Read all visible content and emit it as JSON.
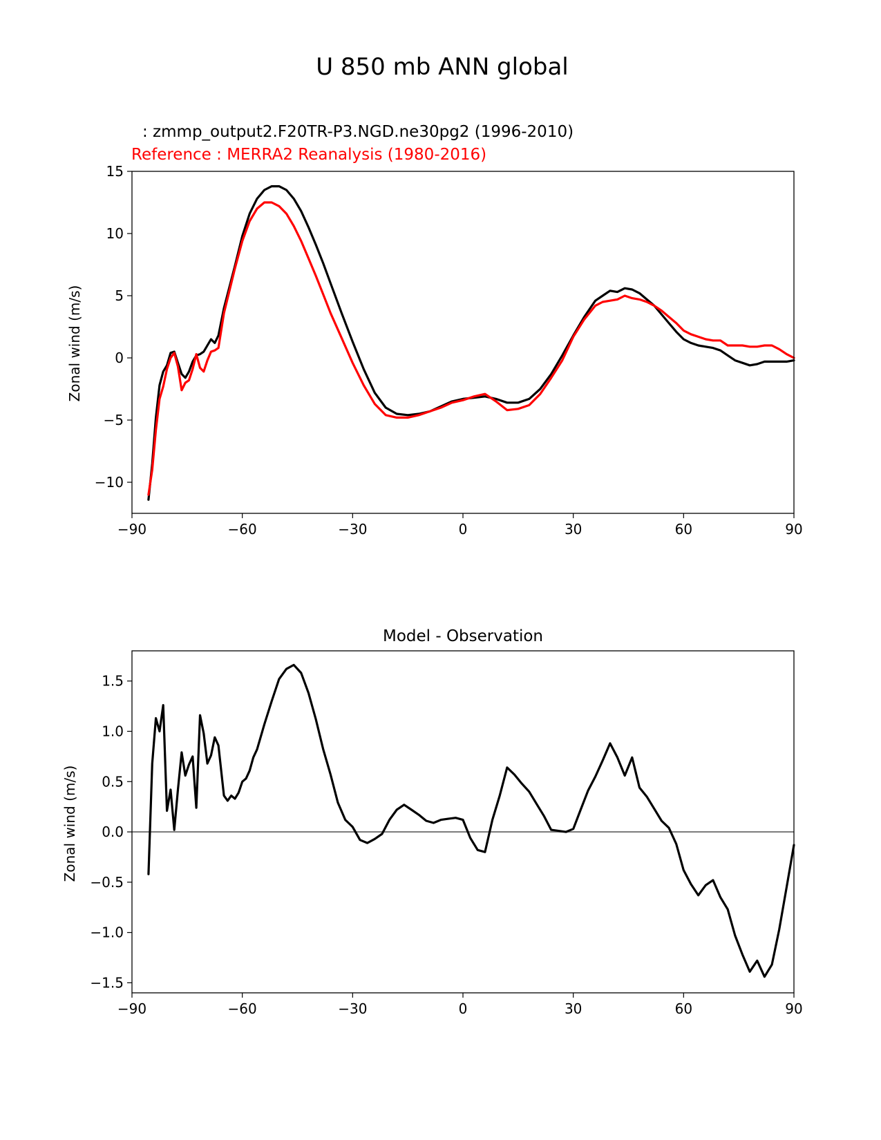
{
  "figure": {
    "title": "U 850 mb ANN global"
  },
  "chart_data": [
    {
      "type": "line",
      "test_label": ": zmmp_output2.F20TR-P3.NGD.ne30pg2 (1996-2010)",
      "ref_label": "Reference : MERRA2 Reanalysis (1980-2016)",
      "xlabel": "",
      "ylabel": "Zonal wind (m/s)",
      "xlim": [
        -90,
        90
      ],
      "ylim": [
        -12.5,
        15
      ],
      "xticks": [
        -90,
        -60,
        -30,
        0,
        30,
        60,
        90
      ],
      "xtick_labels": [
        "−90",
        "−60",
        "−30",
        "0",
        "30",
        "60",
        "90"
      ],
      "yticks": [
        -10,
        -5,
        0,
        5,
        10,
        15
      ],
      "ytick_labels": [
        "−10",
        "−5",
        "0",
        "5",
        "10",
        "15"
      ],
      "colors": {
        "test": "#000000",
        "ref": "#ff0000"
      },
      "series": [
        {
          "name": "test",
          "x": [
            -85.5,
            -84.5,
            -83.5,
            -82.5,
            -81.5,
            -80.5,
            -79.5,
            -78.5,
            -77.5,
            -76.5,
            -75.5,
            -74.5,
            -73.5,
            -72.5,
            -71.5,
            -70.5,
            -69.5,
            -68.5,
            -67.5,
            -66.5,
            -65,
            -62,
            -60,
            -58,
            -56,
            -54,
            -52,
            -50,
            -48,
            -46,
            -44,
            -42,
            -40,
            -38,
            -36,
            -33,
            -30,
            -27,
            -24,
            -21,
            -18,
            -15,
            -12,
            -9,
            -6,
            -3,
            0,
            3,
            6,
            9,
            12,
            15,
            18,
            21,
            24,
            27,
            30,
            33,
            36,
            38,
            40,
            42,
            44,
            46,
            48,
            50,
            52,
            54,
            56,
            58,
            60,
            62,
            64,
            66,
            68,
            70,
            72,
            74,
            76,
            78,
            80,
            82,
            84,
            86,
            88,
            90
          ],
          "y": [
            -11.4,
            -8.5,
            -4.8,
            -2.2,
            -1.1,
            -0.6,
            0.4,
            0.5,
            -0.4,
            -1.3,
            -1.6,
            -1.1,
            -0.3,
            0.2,
            0.3,
            0.5,
            1.0,
            1.5,
            1.2,
            1.8,
            4.0,
            7.4,
            9.8,
            11.6,
            12.8,
            13.5,
            13.8,
            13.8,
            13.5,
            12.8,
            11.8,
            10.5,
            9.1,
            7.6,
            6.0,
            3.6,
            1.3,
            -0.9,
            -2.8,
            -4.0,
            -4.5,
            -4.6,
            -4.5,
            -4.3,
            -3.9,
            -3.5,
            -3.3,
            -3.2,
            -3.1,
            -3.3,
            -3.6,
            -3.6,
            -3.3,
            -2.5,
            -1.3,
            0.2,
            1.8,
            3.3,
            4.6,
            5.0,
            5.4,
            5.3,
            5.6,
            5.5,
            5.2,
            4.7,
            4.2,
            3.5,
            2.8,
            2.1,
            1.5,
            1.2,
            1.0,
            0.9,
            0.8,
            0.6,
            0.2,
            -0.2,
            -0.4,
            -0.6,
            -0.5,
            -0.3,
            -0.3,
            -0.3,
            -0.3,
            -0.2
          ]
        },
        {
          "name": "ref",
          "x": [
            -85.5,
            -84.5,
            -83.5,
            -82.5,
            -81.5,
            -80.5,
            -79.5,
            -78.5,
            -77.5,
            -76.5,
            -75.5,
            -74.5,
            -73.5,
            -72.5,
            -71.5,
            -70.5,
            -69.5,
            -68.5,
            -67.5,
            -66.5,
            -65,
            -62,
            -60,
            -58,
            -56,
            -54,
            -52,
            -50,
            -48,
            -46,
            -44,
            -42,
            -40,
            -38,
            -36,
            -33,
            -30,
            -27,
            -24,
            -21,
            -18,
            -15,
            -12,
            -9,
            -6,
            -3,
            0,
            3,
            6,
            9,
            12,
            15,
            18,
            21,
            24,
            27,
            30,
            33,
            36,
            38,
            40,
            42,
            44,
            46,
            48,
            50,
            52,
            54,
            56,
            58,
            60,
            62,
            64,
            66,
            68,
            70,
            72,
            74,
            76,
            78,
            80,
            82,
            84,
            86,
            88,
            90
          ],
          "y": [
            -11.0,
            -9.0,
            -5.8,
            -3.3,
            -2.3,
            -0.9,
            0.0,
            0.4,
            -0.7,
            -2.6,
            -2.0,
            -1.8,
            -0.9,
            0.3,
            -0.8,
            -1.1,
            -0.2,
            0.5,
            0.6,
            0.8,
            3.6,
            7.2,
            9.4,
            11.0,
            12.0,
            12.5,
            12.5,
            12.2,
            11.6,
            10.6,
            9.4,
            8.0,
            6.6,
            5.1,
            3.6,
            1.6,
            -0.4,
            -2.2,
            -3.7,
            -4.6,
            -4.8,
            -4.8,
            -4.6,
            -4.3,
            -4.0,
            -3.6,
            -3.4,
            -3.1,
            -2.9,
            -3.5,
            -4.2,
            -4.1,
            -3.8,
            -2.9,
            -1.6,
            -0.2,
            1.7,
            3.1,
            4.2,
            4.5,
            4.6,
            4.7,
            5.0,
            4.8,
            4.7,
            4.5,
            4.2,
            3.8,
            3.3,
            2.8,
            2.2,
            1.9,
            1.7,
            1.5,
            1.4,
            1.4,
            1.0,
            1.0,
            1.0,
            0.9,
            0.9,
            1.0,
            1.0,
            0.7,
            0.3,
            0.0
          ]
        }
      ]
    },
    {
      "type": "line",
      "title": "Model - Observation",
      "xlabel": "",
      "ylabel": "Zonal wind (m/s)",
      "xlim": [
        -90,
        90
      ],
      "ylim": [
        -1.6,
        1.8
      ],
      "xticks": [
        -90,
        -60,
        -30,
        0,
        30,
        60,
        90
      ],
      "xtick_labels": [
        "−90",
        "−60",
        "−30",
        "0",
        "30",
        "60",
        "90"
      ],
      "yticks": [
        -1.5,
        -1.0,
        -0.5,
        0.0,
        0.5,
        1.0,
        1.5
      ],
      "ytick_labels": [
        "−1.5",
        "−1.0",
        "−0.5",
        "0.0",
        "0.5",
        "1.0",
        "1.5"
      ],
      "zero_line_color": "#808080",
      "line_color": "#000000",
      "x": [
        -85.5,
        -84.5,
        -83.5,
        -82.5,
        -81.5,
        -80.5,
        -79.5,
        -78.5,
        -77.5,
        -76.5,
        -75.5,
        -74.5,
        -73.5,
        -72.5,
        -71.5,
        -70.5,
        -69.5,
        -68.5,
        -67.5,
        -66.5,
        -65,
        -64,
        -63,
        -62,
        -61,
        -60,
        -59,
        -58,
        -57,
        -56,
        -54,
        -52,
        -50,
        -48,
        -46,
        -44,
        -42,
        -40,
        -38,
        -36,
        -34,
        -32,
        -30,
        -28,
        -26,
        -24,
        -22,
        -20,
        -18,
        -16,
        -14,
        -12,
        -10,
        -8,
        -6,
        -4,
        -2,
        0,
        2,
        4,
        6,
        8,
        10,
        12,
        14,
        16,
        18,
        20,
        22,
        24,
        26,
        28,
        30,
        32,
        34,
        36,
        38,
        40,
        42,
        44,
        46,
        48,
        50,
        52,
        54,
        56,
        58,
        60,
        62,
        64,
        66,
        68,
        70,
        72,
        74,
        76,
        78,
        80,
        82,
        84,
        86,
        88,
        90
      ],
      "y": [
        -0.42,
        0.68,
        1.13,
        1.0,
        1.26,
        0.21,
        0.42,
        0.02,
        0.42,
        0.79,
        0.56,
        0.67,
        0.75,
        0.24,
        1.16,
        0.98,
        0.68,
        0.76,
        0.94,
        0.86,
        0.36,
        0.31,
        0.36,
        0.33,
        0.39,
        0.5,
        0.53,
        0.61,
        0.74,
        0.82,
        1.07,
        1.3,
        1.52,
        1.62,
        1.66,
        1.58,
        1.38,
        1.12,
        0.82,
        0.57,
        0.29,
        0.12,
        0.05,
        -0.08,
        -0.11,
        -0.07,
        -0.02,
        0.12,
        0.22,
        0.27,
        0.22,
        0.17,
        0.11,
        0.09,
        0.12,
        0.13,
        0.14,
        0.12,
        -0.06,
        -0.18,
        -0.2,
        0.12,
        0.36,
        0.64,
        0.57,
        0.48,
        0.4,
        0.28,
        0.16,
        0.02,
        0.01,
        0.0,
        0.03,
        0.22,
        0.41,
        0.55,
        0.71,
        0.88,
        0.74,
        0.56,
        0.74,
        0.44,
        0.35,
        0.23,
        0.11,
        0.04,
        -0.12,
        -0.38,
        -0.52,
        -0.63,
        -0.53,
        -0.48,
        -0.65,
        -0.77,
        -1.03,
        -1.22,
        -1.39,
        -1.28,
        -1.44,
        -1.32,
        -0.97,
        -0.55,
        -0.13
      ]
    }
  ]
}
